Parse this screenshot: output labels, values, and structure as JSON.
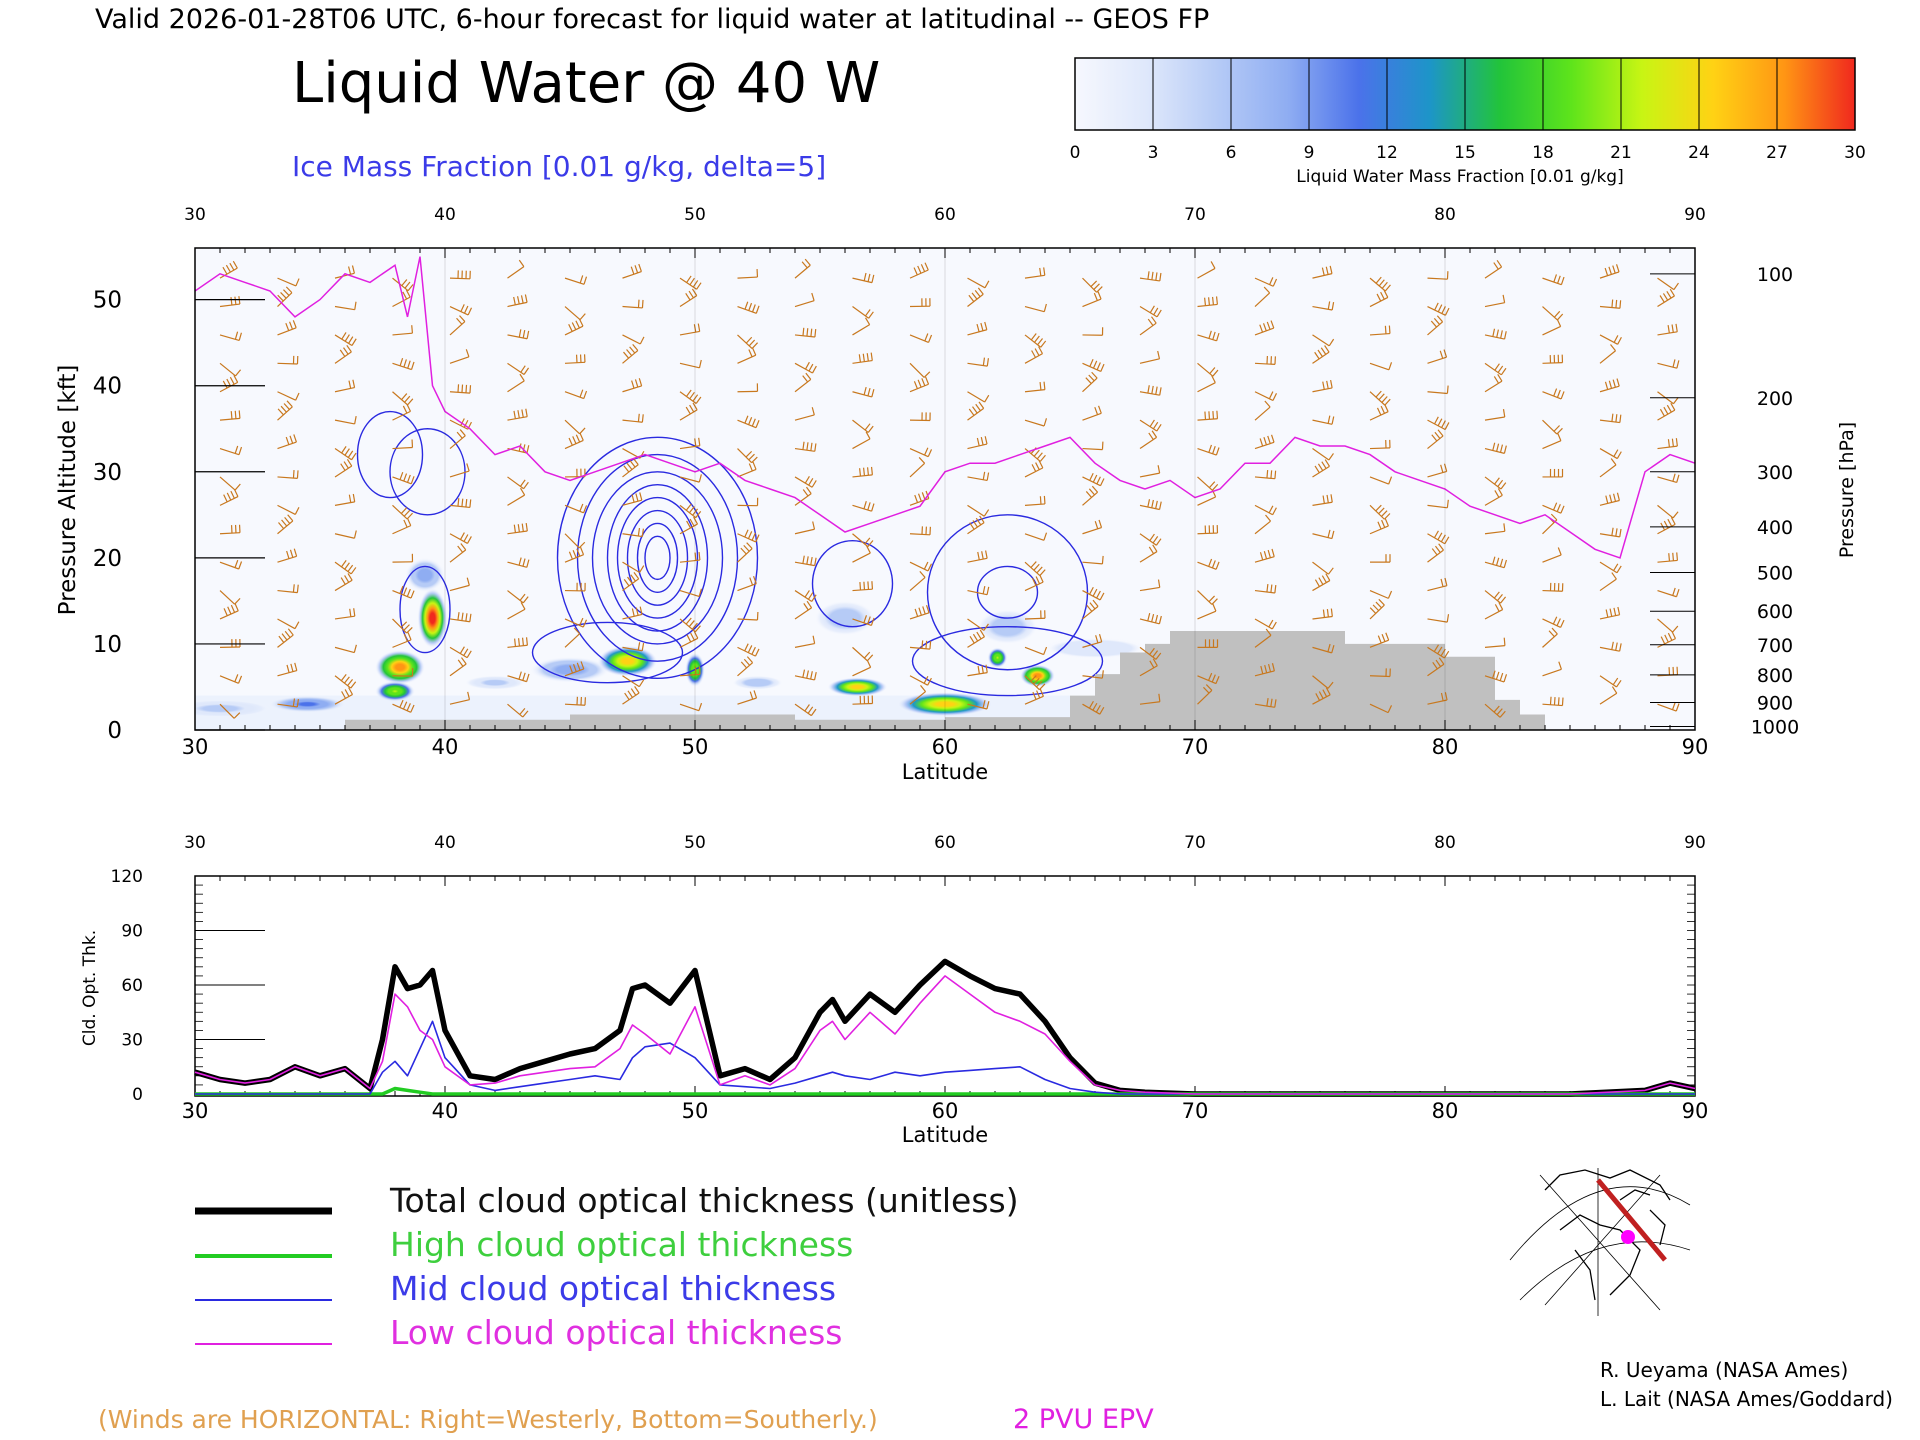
{
  "header": {
    "valid_line": "Valid 2026-01-28T06 UTC, 6-hour forecast for liquid water at latitudinal -- GEOS FP",
    "title": "Liquid Water @ 40 W",
    "subtitle": "Ice Mass Fraction [0.01 g/kg, delta=5]"
  },
  "colorbar": {
    "ticks": [
      "0",
      "3",
      "6",
      "9",
      "12",
      "15",
      "18",
      "21",
      "24",
      "27",
      "30"
    ],
    "label": "Liquid Water Mass Fraction [0.01 g/kg]",
    "colors": [
      "#f6f8fe",
      "#dfe8fb",
      "#b6cbf6",
      "#8fadf2",
      "#4b72ea",
      "#1d95c8",
      "#22c43a",
      "#5ee41b",
      "#c8f514",
      "#ffd214",
      "#ff9614",
      "#f0281e"
    ]
  },
  "footer": {
    "winds_note": "(Winds are HORIZONTAL: Right=Westerly, Bottom=Southerly.)",
    "epv_label": "2 PVU EPV",
    "credit_1": "R. Ueyama (NASA Ames)",
    "credit_2": "L. Lait (NASA Ames/Goddard)"
  },
  "legend": {
    "total": "Total cloud optical thickness (unitless)",
    "high": "High cloud optical thickness",
    "mid": "Mid cloud optical thickness",
    "low": "Low cloud optical thickness"
  },
  "colors": {
    "total": "#000000",
    "high": "#22cc22",
    "mid": "#2a2ae0",
    "low": "#e020e0",
    "barb": "#c8781e",
    "terrain": "#c0c0c0",
    "pv": "#e020e0"
  },
  "chart_data": [
    {
      "type": "heatmap",
      "xlabel": "Latitude",
      "ylabel": "Pressure Altitude [kft]",
      "y2label": "Pressure [hPa]",
      "xlim": [
        30,
        90
      ],
      "ylim": [
        0,
        56
      ],
      "x_ticks": [
        "30",
        "40",
        "50",
        "60",
        "70",
        "80",
        "90"
      ],
      "y_ticks": [
        "0",
        "10",
        "20",
        "30",
        "40",
        "50"
      ],
      "pressure_ticks": [
        {
          "label": "100",
          "kft": 53
        },
        {
          "label": "200",
          "kft": 38.6
        },
        {
          "label": "300",
          "kft": 30
        },
        {
          "label": "400",
          "kft": 23.6
        },
        {
          "label": "500",
          "kft": 18.3
        },
        {
          "label": "600",
          "kft": 13.8
        },
        {
          "label": "700",
          "kft": 9.9
        },
        {
          "label": "800",
          "kft": 6.4
        },
        {
          "label": "900",
          "kft": 3.2
        },
        {
          "label": "1000",
          "kft": 0.4
        }
      ],
      "liquid_water_blobs": [
        {
          "lat": 34.5,
          "kft": 3.0,
          "peak": 10,
          "wx": 1.6,
          "wy": 1.0
        },
        {
          "lat": 31.0,
          "kft": 2.5,
          "peak": 5,
          "wx": 2.0,
          "wy": 1.0
        },
        {
          "lat": 38.2,
          "kft": 7.3,
          "peak": 27,
          "wx": 1.0,
          "wy": 2.0
        },
        {
          "lat": 38.0,
          "kft": 4.5,
          "peak": 21,
          "wx": 0.8,
          "wy": 1.2
        },
        {
          "lat": 39.5,
          "kft": 13.0,
          "peak": 30,
          "wx": 0.6,
          "wy": 3.5
        },
        {
          "lat": 39.2,
          "kft": 18.0,
          "peak": 8,
          "wx": 0.8,
          "wy": 2.0
        },
        {
          "lat": 42.0,
          "kft": 5.5,
          "peak": 5,
          "wx": 1.2,
          "wy": 0.8
        },
        {
          "lat": 45.0,
          "kft": 7.0,
          "peak": 8,
          "wx": 1.6,
          "wy": 1.5
        },
        {
          "lat": 47.3,
          "kft": 8.0,
          "peak": 24,
          "wx": 1.2,
          "wy": 1.8
        },
        {
          "lat": 50.0,
          "kft": 7.0,
          "peak": 21,
          "wx": 0.4,
          "wy": 2.0
        },
        {
          "lat": 52.5,
          "kft": 5.5,
          "peak": 6,
          "wx": 1.0,
          "wy": 0.8
        },
        {
          "lat": 56.5,
          "kft": 5.0,
          "peak": 24,
          "wx": 1.2,
          "wy": 1.1
        },
        {
          "lat": 56.0,
          "kft": 13.0,
          "peak": 6,
          "wx": 1.2,
          "wy": 2.0
        },
        {
          "lat": 60.0,
          "kft": 3.0,
          "peak": 24,
          "wx": 1.9,
          "wy": 1.4
        },
        {
          "lat": 62.1,
          "kft": 8.4,
          "peak": 21,
          "wx": 0.4,
          "wy": 1.2
        },
        {
          "lat": 63.7,
          "kft": 6.3,
          "peak": 27,
          "wx": 0.7,
          "wy": 1.3
        },
        {
          "lat": 62.5,
          "kft": 12.0,
          "peak": 6,
          "wx": 1.2,
          "wy": 2.0
        },
        {
          "lat": 66.0,
          "kft": 9.5,
          "peak": 4,
          "wx": 2.2,
          "wy": 1.3
        }
      ],
      "terrain_lat": [
        30,
        36,
        36,
        45,
        45,
        54,
        54,
        60,
        60,
        65,
        65,
        66,
        66,
        67,
        67,
        68,
        68,
        69,
        69,
        76,
        76,
        80,
        80,
        82,
        82,
        83,
        83,
        84,
        84,
        90
      ],
      "terrain_kft": [
        0,
        0,
        1.2,
        1.2,
        1.8,
        1.8,
        1.2,
        1.2,
        1.5,
        1.5,
        4,
        4,
        6.5,
        6.5,
        9,
        9,
        10,
        10,
        11.5,
        11.5,
        10,
        10,
        8.5,
        8.5,
        3.5,
        3.5,
        1.8,
        1.8,
        0,
        0
      ],
      "pv_lat": [
        30,
        31,
        32,
        33,
        34,
        35,
        36,
        37,
        38,
        38.5,
        39,
        39.5,
        40,
        41,
        42,
        43,
        44,
        45,
        46,
        47,
        48,
        49,
        50,
        51,
        52,
        53,
        54,
        55,
        56,
        57,
        58,
        59,
        60,
        61,
        62,
        63,
        64,
        65,
        66,
        67,
        68,
        69,
        70,
        71,
        72,
        73,
        74,
        75,
        76,
        77,
        78,
        79,
        80,
        81,
        82,
        83,
        84,
        85,
        86,
        87,
        88,
        89,
        90
      ],
      "pv_kft": [
        51,
        53,
        52,
        51,
        48,
        50,
        53,
        52,
        54,
        48,
        55,
        40,
        37,
        35,
        32,
        33,
        30,
        29,
        30,
        31,
        32,
        31,
        30,
        31,
        29,
        28,
        27,
        25,
        23,
        24,
        25,
        26,
        30,
        31,
        31,
        32,
        33,
        34,
        31,
        29,
        28,
        29,
        27,
        28,
        31,
        31,
        34,
        33,
        33,
        32,
        30,
        29,
        28,
        26,
        25,
        24,
        25,
        23,
        21,
        20,
        30,
        32,
        31
      ]
    },
    {
      "type": "line",
      "xlabel": "Latitude",
      "ylabel": "Cld. Opt. Thk.",
      "xlim": [
        30,
        90
      ],
      "ylim": [
        0,
        120
      ],
      "x_ticks": [
        "30",
        "40",
        "50",
        "60",
        "70",
        "80",
        "90"
      ],
      "y_ticks": [
        "0",
        "30",
        "60",
        "90",
        "120"
      ],
      "x": [
        30,
        31,
        32,
        33,
        34,
        35,
        36,
        37,
        37.5,
        38,
        38.5,
        39,
        39.5,
        40,
        41,
        42,
        43,
        44,
        45,
        46,
        47,
        47.5,
        48,
        49,
        50,
        51,
        52,
        53,
        54,
        55,
        55.5,
        56,
        57,
        58,
        59,
        60,
        61,
        62,
        63,
        64,
        65,
        66,
        67,
        68,
        70,
        75,
        80,
        85,
        88,
        89,
        90
      ],
      "series": [
        {
          "name": "Total cloud optical thickness (unitless)",
          "values": [
            12,
            8,
            6,
            8,
            15,
            10,
            14,
            3,
            30,
            70,
            58,
            60,
            68,
            35,
            10,
            8,
            14,
            18,
            22,
            25,
            35,
            58,
            60,
            50,
            68,
            10,
            14,
            8,
            20,
            45,
            52,
            40,
            55,
            45,
            60,
            73,
            65,
            58,
            55,
            40,
            20,
            6,
            2,
            1,
            0,
            0,
            0,
            0,
            2,
            6,
            3
          ]
        },
        {
          "name": "High cloud optical thickness",
          "values": [
            0,
            0,
            0,
            0,
            0,
            0,
            0,
            0,
            0,
            3,
            2,
            1,
            0,
            0,
            0,
            0,
            0,
            0,
            0,
            0,
            0,
            0,
            0,
            0,
            0,
            0,
            0,
            0,
            0,
            0,
            0,
            0,
            0,
            0,
            0,
            0,
            0,
            0,
            0,
            0,
            0,
            0,
            0,
            0,
            0,
            0,
            0,
            0,
            0,
            0,
            0
          ]
        },
        {
          "name": "Mid cloud optical thickness",
          "values": [
            0,
            0,
            0,
            0,
            0,
            0,
            0,
            0,
            12,
            18,
            10,
            25,
            40,
            20,
            5,
            2,
            4,
            6,
            8,
            10,
            8,
            20,
            26,
            28,
            20,
            5,
            4,
            3,
            6,
            10,
            12,
            10,
            8,
            12,
            10,
            12,
            13,
            14,
            15,
            8,
            3,
            1,
            0,
            0,
            0,
            0,
            0,
            0,
            0,
            0,
            0
          ]
        },
        {
          "name": "Low cloud optical thickness",
          "values": [
            12,
            8,
            6,
            8,
            15,
            10,
            14,
            3,
            18,
            55,
            48,
            35,
            30,
            15,
            5,
            6,
            10,
            12,
            14,
            15,
            25,
            38,
            33,
            22,
            48,
            5,
            10,
            5,
            14,
            35,
            40,
            30,
            45,
            33,
            50,
            65,
            55,
            45,
            40,
            33,
            18,
            5,
            2,
            1,
            0,
            0,
            0,
            0,
            2,
            6,
            3
          ]
        }
      ]
    }
  ]
}
